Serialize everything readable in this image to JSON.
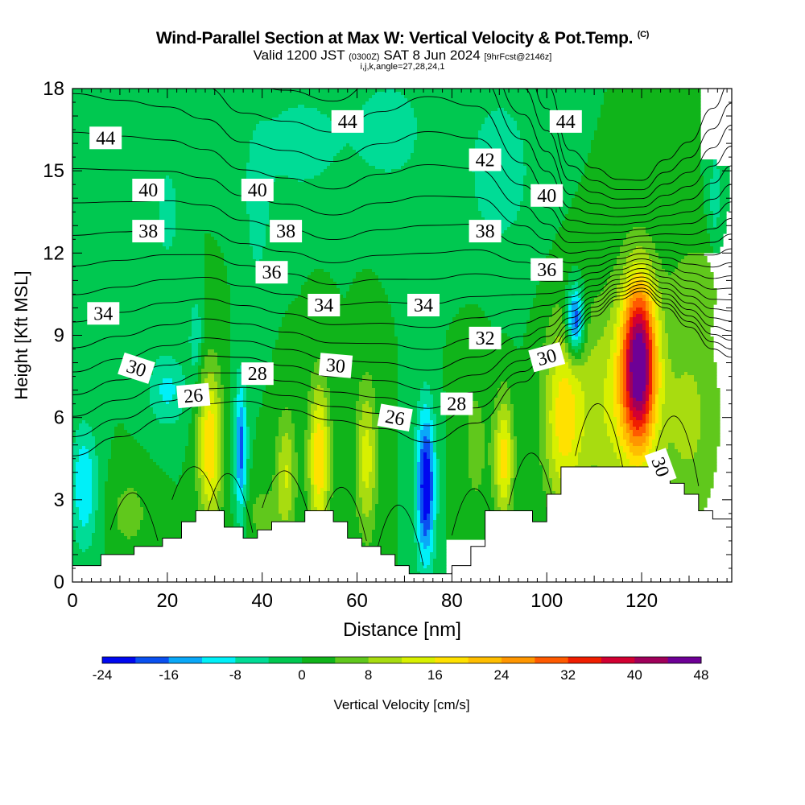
{
  "header": {
    "title": "Wind-Parallel Section at Max W: Vertical Velocity & Pot.Temp.",
    "title_mark": "(C)",
    "subtitle_a": "Valid 1200 JST",
    "subtitle_b": "(0300Z)",
    "subtitle_c": "SAT 8 Jun 2024",
    "subtitle_d": "[9hrFcst@2146z]",
    "indices": "i,j,k,angle=27,28,24,1"
  },
  "chart_data": {
    "type": "heatmap",
    "xlabel": "Distance [nm]",
    "ylabel": "Height [Kft MSL]",
    "xlim": [
      0,
      139
    ],
    "ylim": [
      0,
      18
    ],
    "x_ticks": [
      0,
      20,
      40,
      60,
      80,
      100,
      120
    ],
    "y_ticks": [
      0,
      3,
      6,
      9,
      12,
      15,
      18
    ],
    "grid": false,
    "colorbar": {
      "label": "Vertical Velocity [cm/s]",
      "tick_labels": [
        "-24",
        "-16",
        "-8",
        "0",
        "8",
        "16",
        "24",
        "32",
        "40",
        "48"
      ],
      "ticks": [
        -24,
        -16,
        -8,
        0,
        8,
        16,
        24,
        32,
        40,
        48
      ],
      "colors": [
        "#0008f0",
        "#0a50f0",
        "#0aa8f8",
        "#00f0f8",
        "#00dc96",
        "#00c850",
        "#10b41a",
        "#60c81c",
        "#a8dc10",
        "#d8f000",
        "#ffe100",
        "#ffbe00",
        "#ff9600",
        "#ff5a00",
        "#f01e00",
        "#d20032",
        "#a0005a",
        "#6e0096"
      ]
    },
    "field": {
      "name": "Vertical Velocity",
      "units": "cm/s",
      "background": 0
    },
    "features": [
      {
        "x": 119.5,
        "y": 8.0,
        "sx": 2.6,
        "sy": 2.2,
        "v": 44
      },
      {
        "x": 114.0,
        "y": 6.5,
        "sx": 5.5,
        "sy": 2.8,
        "v": 12
      },
      {
        "x": 103.5,
        "y": 6.0,
        "sx": 3.0,
        "sy": 2.5,
        "v": 17
      },
      {
        "x": 91.0,
        "y": 4.5,
        "sx": 1.4,
        "sy": 1.6,
        "v": 18
      },
      {
        "x": 29.0,
        "y": 5.0,
        "sx": 1.8,
        "sy": 2.0,
        "v": 20
      },
      {
        "x": 52.0,
        "y": 4.5,
        "sx": 1.6,
        "sy": 2.0,
        "v": 20
      },
      {
        "x": 62.0,
        "y": 4.5,
        "sx": 1.6,
        "sy": 2.0,
        "v": 14
      },
      {
        "x": 45.0,
        "y": 4.0,
        "sx": 1.5,
        "sy": 1.6,
        "v": 12
      },
      {
        "x": 130.0,
        "y": 6.0,
        "sx": 5.0,
        "sy": 3.0,
        "v": 9
      },
      {
        "x": 85.0,
        "y": 5.0,
        "sx": 2.5,
        "sy": 2.5,
        "v": 5
      },
      {
        "x": 132.0,
        "y": 11.0,
        "sx": 4.0,
        "sy": 1.0,
        "v": 5
      },
      {
        "x": 74.5,
        "y": 3.5,
        "sx": 1.4,
        "sy": 2.0,
        "v": -24
      },
      {
        "x": 35.5,
        "y": 4.8,
        "sx": 0.9,
        "sy": 1.8,
        "v": -18
      },
      {
        "x": 106.0,
        "y": 9.5,
        "sx": 1.3,
        "sy": 0.9,
        "v": -24
      },
      {
        "x": 2.5,
        "y": 3.5,
        "sx": 2.0,
        "sy": 1.6,
        "v": -12
      },
      {
        "x": 20.0,
        "y": 7.0,
        "sx": 3.0,
        "sy": 1.0,
        "v": -9
      },
      {
        "x": 26.0,
        "y": 9.0,
        "sx": 1.0,
        "sy": 1.0,
        "v": -8
      },
      {
        "x": 48.0,
        "y": 16.0,
        "sx": 7.0,
        "sy": 1.5,
        "v": -6
      },
      {
        "x": 90.0,
        "y": 15.0,
        "sx": 6.0,
        "sy": 2.5,
        "v": -6
      },
      {
        "x": 67.0,
        "y": 16.5,
        "sx": 6.0,
        "sy": 1.6,
        "v": -6
      },
      {
        "x": 20.0,
        "y": 13.5,
        "sx": 2.0,
        "sy": 1.5,
        "v": -6
      },
      {
        "x": 39.0,
        "y": 13.5,
        "sx": 2.0,
        "sy": 2.0,
        "v": -6
      },
      {
        "x": 135.5,
        "y": 14.0,
        "sx": 1.0,
        "sy": 1.6,
        "v": -6
      },
      {
        "x": 40.0,
        "y": 2.5,
        "sx": 3.0,
        "sy": 1.0,
        "v": 5
      },
      {
        "x": 12.0,
        "y": 2.5,
        "sx": 3.0,
        "sy": 1.0,
        "v": 6
      }
    ],
    "terrain": {
      "x": [
        0,
        6,
        6,
        13,
        13,
        19,
        19,
        23,
        23,
        26,
        26,
        32,
        32,
        36,
        36,
        39,
        39,
        42,
        42,
        49,
        49,
        55,
        55,
        58,
        58,
        61,
        61,
        65,
        65,
        68,
        68,
        71,
        71,
        80,
        80,
        84,
        84,
        87,
        87,
        97,
        97,
        100,
        100,
        103,
        103,
        126,
        126,
        129,
        129,
        132,
        132,
        135,
        135,
        139
      ],
      "y": [
        0.6,
        0.6,
        1.0,
        1.0,
        1.3,
        1.3,
        1.6,
        1.6,
        2.2,
        2.2,
        2.6,
        2.6,
        2.0,
        2.0,
        1.6,
        1.6,
        1.9,
        1.9,
        2.2,
        2.2,
        2.6,
        2.6,
        2.2,
        2.2,
        1.6,
        1.6,
        1.3,
        1.3,
        1.0,
        1.0,
        0.6,
        0.6,
        0.3,
        0.3,
        0.6,
        0.6,
        1.3,
        1.3,
        2.6,
        2.6,
        2.2,
        2.2,
        3.2,
        3.2,
        4.2,
        4.2,
        3.6,
        3.6,
        3.2,
        3.2,
        2.6,
        2.6,
        2.3,
        2.3
      ]
    },
    "theta_levels": [
      26,
      27,
      28,
      29,
      30,
      31,
      32,
      33,
      34,
      35,
      36,
      37,
      38,
      39,
      40,
      41,
      42,
      43,
      44,
      45
    ],
    "theta_profile": {
      "x": [
        0,
        10,
        20,
        28,
        36,
        45,
        55,
        65,
        75,
        85,
        95,
        100,
        105,
        110,
        115,
        120,
        125,
        130,
        135,
        139
      ],
      "h26": [
        4.6,
        5.3,
        6.0,
        6.5,
        6.6,
        6.3,
        5.9,
        5.6,
        5.1,
        5.8,
        7.3,
        8.0,
        9.0,
        9.7,
        10.3,
        10.6,
        10.0,
        9.3,
        8.5,
        8.2
      ],
      "dh": [
        0.7,
        0.65,
        0.6,
        0.55,
        0.5,
        0.5,
        0.5,
        0.55,
        0.6,
        0.55,
        0.38,
        0.3,
        0.2,
        0.16,
        0.13,
        0.12,
        0.16,
        0.2,
        0.26,
        0.3
      ]
    },
    "theta_labels": [
      {
        "x": 7,
        "y": 16.2,
        "text": "44"
      },
      {
        "x": 58,
        "y": 16.8,
        "text": "44"
      },
      {
        "x": 104,
        "y": 16.8,
        "text": "44"
      },
      {
        "x": 87,
        "y": 15.4,
        "text": "42"
      },
      {
        "x": 16,
        "y": 14.3,
        "text": "40"
      },
      {
        "x": 39,
        "y": 14.3,
        "text": "40"
      },
      {
        "x": 100,
        "y": 14.1,
        "text": "40"
      },
      {
        "x": 16,
        "y": 12.8,
        "text": "38"
      },
      {
        "x": 45,
        "y": 12.8,
        "text": "38"
      },
      {
        "x": 87,
        "y": 12.8,
        "text": "38"
      },
      {
        "x": 42,
        "y": 11.3,
        "text": "36"
      },
      {
        "x": 100,
        "y": 11.4,
        "text": "36"
      },
      {
        "x": 6.5,
        "y": 9.8,
        "text": "34"
      },
      {
        "x": 53,
        "y": 10.1,
        "text": "34"
      },
      {
        "x": 74,
        "y": 10.1,
        "text": "34"
      },
      {
        "x": 87,
        "y": 8.9,
        "text": "32"
      },
      {
        "x": 13.5,
        "y": 7.8,
        "text": "30",
        "rot": 18
      },
      {
        "x": 55.5,
        "y": 7.9,
        "text": "30",
        "rot": 5
      },
      {
        "x": 100,
        "y": 8.2,
        "text": "30",
        "rot": -15
      },
      {
        "x": 124,
        "y": 4.2,
        "text": "30",
        "rot": 70
      },
      {
        "x": 39,
        "y": 7.6,
        "text": "28"
      },
      {
        "x": 81,
        "y": 6.5,
        "text": "28"
      },
      {
        "x": 25.5,
        "y": 6.8,
        "text": "26",
        "rot": -5
      },
      {
        "x": 68,
        "y": 6.0,
        "text": "26",
        "rot": 10
      }
    ]
  }
}
